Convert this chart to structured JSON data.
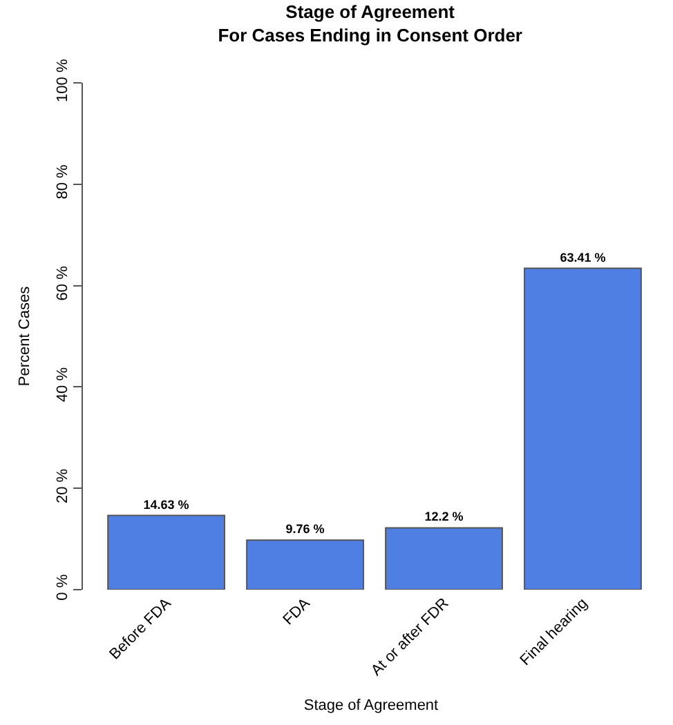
{
  "chart_data": {
    "type": "bar",
    "title": "Stage of Agreement\nFor Cases Ending in Consent Order",
    "xlabel": "Stage of Agreement",
    "ylabel": "Percent Cases",
    "categories": [
      "Before FDA",
      "FDA",
      "At or after FDR",
      "Final hearing"
    ],
    "values": [
      14.63,
      9.76,
      12.2,
      63.41
    ],
    "value_labels": [
      "14.63 %",
      "9.76 %",
      "12.2 %",
      "63.41 %"
    ],
    "color": "#4f7fe3",
    "ylim": [
      0,
      100
    ],
    "yticks": [
      {
        "value": 0,
        "label": "0 %"
      },
      {
        "value": 20,
        "label": "20 %"
      },
      {
        "value": 40,
        "label": "40 %"
      },
      {
        "value": 60,
        "label": "60 %"
      },
      {
        "value": 80,
        "label": "80 %"
      },
      {
        "value": 100,
        "label": "100 %"
      }
    ]
  }
}
